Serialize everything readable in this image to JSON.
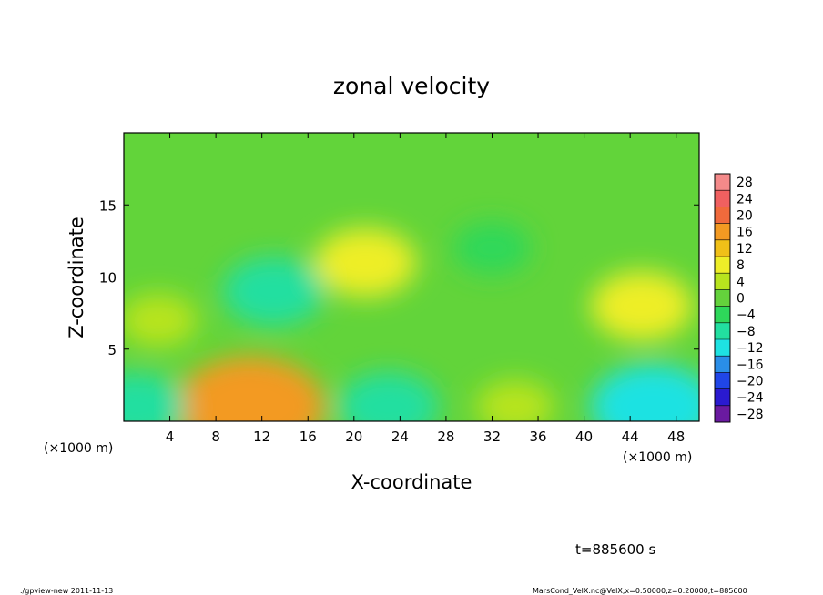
{
  "chart_data": {
    "type": "heatmap",
    "title": "zonal velocity",
    "xlabel": "X-coordinate",
    "ylabel": "Z-coordinate",
    "x_unit_left": "(×1000 m)",
    "x_unit_right": "(×1000 m)",
    "xlim": [
      0,
      50
    ],
    "ylim": [
      0,
      20
    ],
    "x_ticks": [
      4,
      8,
      12,
      16,
      20,
      24,
      28,
      32,
      36,
      40,
      44,
      48
    ],
    "y_ticks": [
      5,
      10,
      15
    ],
    "colorbar": {
      "levels": [
        28,
        24,
        20,
        16,
        12,
        8,
        4,
        0,
        -4,
        -8,
        -12,
        -16,
        -20,
        -24,
        -28
      ],
      "colors": [
        "#f48a8a",
        "#f06060",
        "#f06a3c",
        "#f39a22",
        "#f0c018",
        "#eeee28",
        "#b8e41e",
        "#64d23c",
        "#2ed85a",
        "#22dfa0",
        "#1ee2e2",
        "#2a8ee8",
        "#2046e8",
        "#2a1ad0",
        "#6a1aa0"
      ]
    },
    "field_features": [
      {
        "x": 3,
        "z": 7,
        "value": 4
      },
      {
        "x": 11,
        "z": 1,
        "value": 16
      },
      {
        "x": 13,
        "z": 9,
        "value": -8
      },
      {
        "x": 21,
        "z": 11,
        "value": 8
      },
      {
        "x": 23,
        "z": 1,
        "value": -8
      },
      {
        "x": 32,
        "z": 12,
        "value": -4
      },
      {
        "x": 34,
        "z": 1,
        "value": 4
      },
      {
        "x": 45,
        "z": 8,
        "value": 8
      },
      {
        "x": 46,
        "z": 1,
        "value": -12
      },
      {
        "x": 1,
        "z": 1,
        "value": -8
      }
    ],
    "colors": {
      "background_field": "#62d43a"
    }
  },
  "annotations": {
    "time": "t=885600 s",
    "footer_left": "./gpview-new  2011-11-13",
    "footer_right": "MarsCond_VelX.nc@VelX,x=0:50000,z=0:20000,t=885600"
  }
}
